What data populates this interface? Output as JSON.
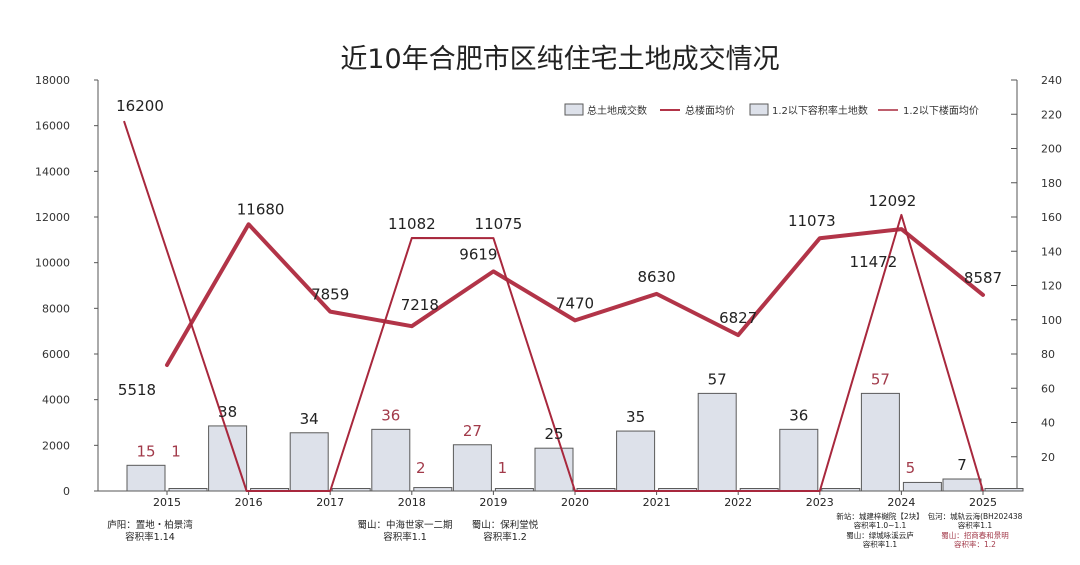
{
  "chart_data": {
    "type": "bar+line",
    "title": "近10年合肥市区纯住宅土地成交情况",
    "categories": [
      "2015",
      "2016",
      "2017",
      "2018",
      "2019",
      "2020",
      "2021",
      "2022",
      "2023",
      "2024",
      "2025"
    ],
    "left_axis": {
      "ylim": [
        0,
        18000
      ],
      "ticks": [
        "0",
        "2000",
        "4000",
        "6000",
        "8000",
        "10000",
        "12000",
        "14000",
        "16000",
        "18000"
      ]
    },
    "right_axis": {
      "ylim": [
        0,
        240
      ],
      "ticks": [
        "20",
        "40",
        "60",
        "80",
        "100",
        "120",
        "140",
        "160",
        "180",
        "200",
        "220",
        "240"
      ]
    },
    "legend": [
      "总土地成交数",
      "总楼面均价",
      "1.2以下容积率土地数",
      "1.2以下楼面均价"
    ],
    "series": [
      {
        "name": "总土地成交数",
        "kind": "bar",
        "axis": "right",
        "values": [
          15,
          38,
          34,
          36,
          27,
          25,
          35,
          57,
          36,
          57,
          7
        ],
        "labels": [
          "15",
          "38",
          "34",
          "36",
          "27",
          "25",
          "35",
          "57",
          "36",
          "57",
          "7"
        ]
      },
      {
        "name": "1.2以下容积率土地数",
        "kind": "bar",
        "axis": "right",
        "values": [
          1,
          0,
          0,
          2,
          1,
          1,
          0,
          0,
          0,
          5,
          0
        ],
        "labels": [
          "1",
          "",
          "",
          "2",
          "1",
          "",
          "",
          "",
          "",
          "5",
          ""
        ]
      },
      {
        "name": "总楼面均价",
        "kind": "line",
        "axis": "left",
        "values": [
          5518,
          11680,
          7859,
          7218,
          9619,
          7470,
          8630,
          6827,
          11073,
          11472,
          8587
        ],
        "labels": [
          "5518",
          "11680",
          "7859",
          "7218",
          "9619",
          "7470",
          "8630",
          "6827",
          "11073",
          "11472",
          "8587"
        ]
      },
      {
        "name": "1.2以下楼面均价",
        "kind": "line",
        "axis": "left",
        "values": [
          16200,
          0,
          0,
          11082,
          11075,
          0,
          0,
          0,
          0,
          12092,
          0
        ],
        "labels": [
          "16200",
          "",
          "",
          "11082",
          "11075",
          "",
          "",
          "",
          "",
          "12092",
          ""
        ]
      }
    ],
    "bar_label_colors": [
      "red",
      "dark",
      "dark",
      "red",
      "red",
      "dark",
      "dark",
      "dark",
      "dark",
      "red",
      "dark"
    ],
    "colors": {
      "line_main": "#b23448",
      "line_thin": "#a8283d",
      "bar_fill": "#dde1ea",
      "bar_stroke": "#5a5a5a",
      "label_red": "#a23a4a"
    },
    "annotations": {
      "y2015": [
        "庐阳：置地・柏景湾",
        "容积率1.14"
      ],
      "y2018": [
        "蜀山：中海世家一二期",
        "容积率1.1"
      ],
      "y2019": [
        "蜀山：保利堂悦",
        "容积率1.2"
      ],
      "y2024a": [
        "新站：城建梓樾院【2块】",
        "容积率1.0~1.1"
      ],
      "y2024b": [
        "蜀山：绿城咏溪云庐",
        "容积率1.1"
      ],
      "y2025a": [
        "包河：城轨云海(BH202438",
        "容积率1.1"
      ],
      "y2025b": [
        "蜀山：招商春和景明",
        "容积率：1.2"
      ]
    }
  }
}
